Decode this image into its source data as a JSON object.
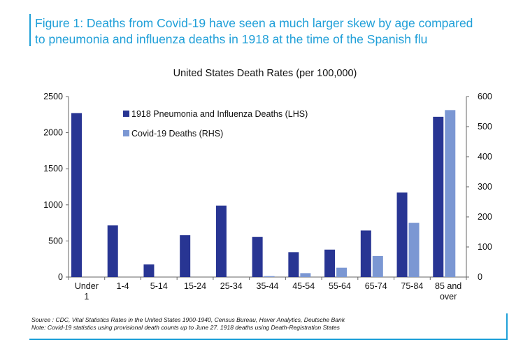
{
  "figure": {
    "title_line1": "Figure 1: Deaths from Covid-19 have seen a much larger skew by age compared",
    "title_line2": "to pneumonia and influenza deaths in 1918 at the time of the Spanish flu"
  },
  "footer": {
    "source": "Source : CDC, Vital Statistics Rates in the United States 1900-1940, Census Bureau, Haver Analytics, Deutsche Bank",
    "note": "Note: Covid-19 statistics using provisional death counts up to June 27. 1918 deaths using Death-Registration States"
  },
  "colors": {
    "accent": "#1fa0d8",
    "series1": "#283593",
    "series2": "#7b97d3"
  },
  "chart_data": {
    "type": "bar",
    "title": "United States Death Rates (per 100,000)",
    "categories": [
      [
        "Under",
        "1"
      ],
      [
        "1-4"
      ],
      [
        "5-14"
      ],
      [
        "15-24"
      ],
      [
        "25-34"
      ],
      [
        "35-44"
      ],
      [
        "45-54"
      ],
      [
        "55-64"
      ],
      [
        "65-74"
      ],
      [
        "75-84"
      ],
      [
        "85 and",
        "over"
      ]
    ],
    "series": [
      {
        "name": "1918 Pneumonia and Influenza Deaths (LHS)",
        "axis": "left",
        "values": [
          2270,
          715,
          175,
          580,
          990,
          555,
          345,
          380,
          645,
          1170,
          2220
        ]
      },
      {
        "name": "Covid-19 Deaths (RHS)",
        "axis": "right",
        "values": [
          0,
          0,
          0,
          0,
          0,
          3,
          13,
          31,
          70,
          180,
          555
        ]
      }
    ],
    "y_left": {
      "min": 0,
      "max": 2500,
      "ticks": [
        0,
        500,
        1000,
        1500,
        2000,
        2500
      ]
    },
    "y_right": {
      "min": 0,
      "max": 600,
      "ticks": [
        0,
        100,
        200,
        300,
        400,
        500,
        600
      ]
    },
    "grid": false,
    "legend_position": "top-left"
  }
}
